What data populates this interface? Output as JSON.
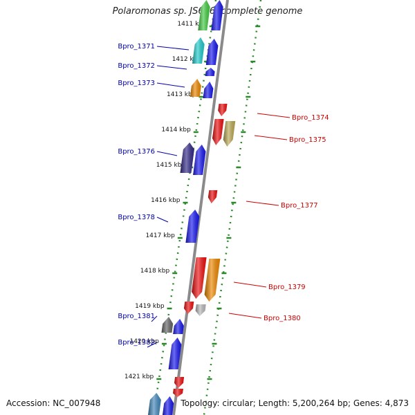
{
  "title": "Polaromonas sp. JS666, complete genome",
  "accession": "Accession: NC_007948",
  "topology": "Topology: circular; Length: 5,200,264 bp; Genes: 4,873",
  "colors": {
    "backbone": "#8a8a8a",
    "scale_ticks": "#2a8a2a",
    "forward_label": "#0000aa",
    "reverse_label": "#cc0000",
    "tick_label": "#111111"
  },
  "ticks": [
    "1411 kbp",
    "1412 kbp",
    "1413 kbp",
    "1414 kbp",
    "1415 kbp",
    "1416 kbp",
    "1417 kbp",
    "1418 kbp",
    "1419 kbp",
    "1420 kbp",
    "1421 kbp"
  ],
  "gene_labels_forward": [
    "Bpro_1371",
    "Bpro_1372",
    "Bpro_1373",
    "Bpro_1376",
    "Bpro_1378",
    "Bpro_1381",
    "Bpro_1382"
  ],
  "gene_labels_reverse": [
    "Bpro_1374",
    "Bpro_1375",
    "Bpro_1377",
    "Bpro_1379",
    "Bpro_1380"
  ],
  "features": [
    {
      "name": "feature-green-top",
      "strand": "fwd-outer",
      "color": "#44cc44"
    },
    {
      "name": "feature-blue-top",
      "strand": "fwd-inner",
      "color": "#1a1aee"
    },
    {
      "name": "feature-cyan",
      "strand": "fwd-outer",
      "color": "#22cccc"
    },
    {
      "name": "feature-blue-a",
      "strand": "fwd-inner",
      "color": "#1a1aee"
    },
    {
      "name": "feature-blue-small",
      "strand": "fwd-inner",
      "color": "#1a1aee"
    },
    {
      "name": "feature-orange-a",
      "strand": "fwd-outer",
      "color": "#ee8800"
    },
    {
      "name": "feature-blue-b",
      "strand": "fwd-inner",
      "color": "#1a1aee"
    },
    {
      "name": "feature-red-small-a",
      "strand": "rev-inner",
      "color": "#ee1111"
    },
    {
      "name": "feature-red-a",
      "strand": "rev-inner",
      "color": "#ee1111"
    },
    {
      "name": "feature-khaki",
      "strand": "rev-outer",
      "color": "#bbaa55"
    },
    {
      "name": "feature-navy",
      "strand": "fwd-outer",
      "color": "#332a88"
    },
    {
      "name": "feature-blue-c",
      "strand": "fwd-inner",
      "color": "#1a1aee"
    },
    {
      "name": "feature-red-small-b",
      "strand": "rev-inner",
      "color": "#ee1111"
    },
    {
      "name": "feature-blue-d",
      "strand": "fwd-inner",
      "color": "#1a1aee"
    },
    {
      "name": "feature-red-b",
      "strand": "rev-inner",
      "color": "#ee1111"
    },
    {
      "name": "feature-orange-b",
      "strand": "rev-outer",
      "color": "#ee8800"
    },
    {
      "name": "feature-red-small-c",
      "strand": "rev-inner",
      "color": "#ee1111"
    },
    {
      "name": "feature-grey-light",
      "strand": "rev-outer",
      "color": "#bbbbbb"
    },
    {
      "name": "feature-grey-dark",
      "strand": "fwd-outer",
      "color": "#666666"
    },
    {
      "name": "feature-blue-e",
      "strand": "fwd-inner",
      "color": "#1a1aee"
    },
    {
      "name": "feature-blue-f",
      "strand": "fwd-inner",
      "color": "#1a1aee"
    },
    {
      "name": "feature-red-small-d",
      "strand": "rev-inner",
      "color": "#ee1111"
    },
    {
      "name": "feature-red-small-e",
      "strand": "rev-inner",
      "color": "#ee1111"
    },
    {
      "name": "feature-steelblue",
      "strand": "fwd-outer",
      "color": "#4488bb"
    },
    {
      "name": "feature-blue-g",
      "strand": "fwd-inner",
      "color": "#1a1aee"
    }
  ]
}
